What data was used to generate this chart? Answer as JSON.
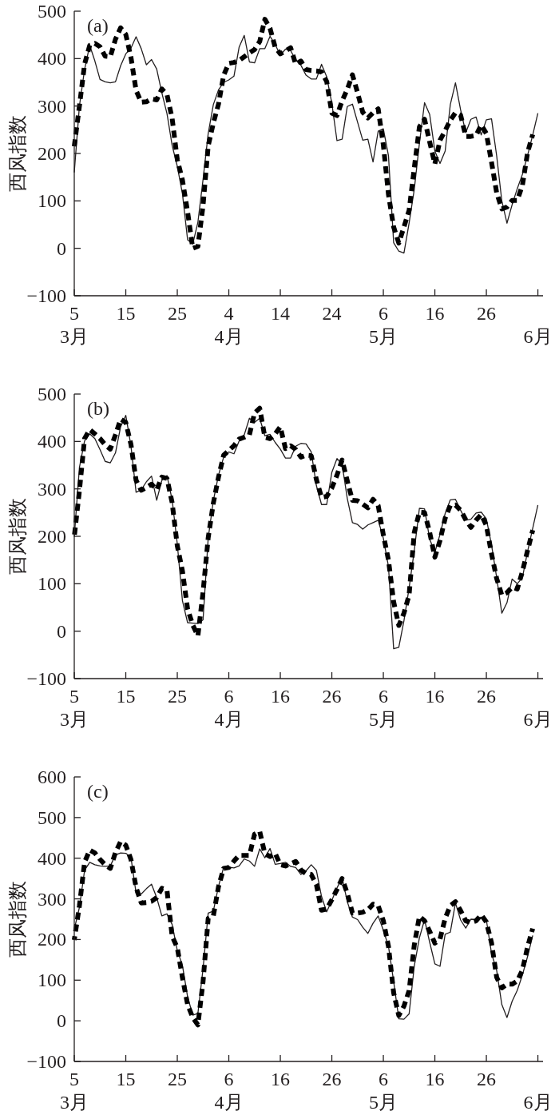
{
  "chart_data": [
    {
      "type": "line",
      "title": "(a)",
      "ylabel": "西风指数",
      "ylim": [
        -100,
        500
      ],
      "yticks": [
        -100,
        0,
        100,
        200,
        300,
        400,
        500
      ],
      "categories": [
        "5\n3月",
        null,
        null,
        null,
        null,
        null,
        null,
        null,
        null,
        null,
        "15",
        null,
        null,
        null,
        null,
        null,
        null,
        null,
        null,
        null,
        "25",
        null,
        null,
        null,
        null,
        null,
        null,
        null,
        null,
        null,
        "4\n4月",
        null,
        null,
        null,
        null,
        null,
        null,
        null,
        null,
        null,
        "14",
        null,
        null,
        null,
        null,
        null,
        null,
        null,
        null,
        null,
        "24",
        null,
        null,
        null,
        null,
        null,
        null,
        null,
        null,
        null,
        "6\n5月",
        null,
        null,
        null,
        null,
        null,
        null,
        null,
        null,
        null,
        "16",
        null,
        null,
        null,
        null,
        null,
        null,
        null,
        null,
        null,
        "26",
        null,
        null,
        null,
        null,
        null,
        null,
        null,
        null,
        null,
        "\n6月"
      ],
      "series": [
        {
          "color": "#231f20",
          "line_style": "solid",
          "values": [
            160,
            300,
            377,
            428,
            395,
            356,
            351,
            349,
            351,
            385,
            410,
            422,
            446,
            421,
            387,
            398,
            378,
            328,
            284,
            217,
            173,
            115,
            18,
            9,
            55,
            145,
            242,
            303,
            334,
            350,
            355,
            363,
            424,
            449,
            393,
            391,
            421,
            421,
            447,
            430,
            407,
            420,
            417,
            397,
            386,
            365,
            357,
            357,
            388,
            362,
            306,
            227,
            230,
            299,
            304,
            266,
            228,
            230,
            182,
            247,
            252,
            195,
            12,
            -6,
            -10,
            53,
            124,
            221,
            307,
            282,
            205,
            179,
            205,
            303,
            349,
            292,
            244,
            272,
            277,
            239,
            271,
            273,
            195,
            100,
            53,
            92,
            126,
            156,
            196,
            239,
            285
          ]
        },
        {
          "color": "#000000",
          "line_style": "dashed",
          "values": [
            215,
            300,
            388,
            428,
            432,
            425,
            405,
            404,
            441,
            465,
            451,
            403,
            333,
            308,
            309,
            315,
            313,
            336,
            324,
            274,
            187,
            144,
            77,
            0,
            4,
            90,
            216,
            264,
            304,
            365,
            390,
            392,
            396,
            404,
            412,
            419,
            436,
            483,
            464,
            424,
            410,
            416,
            423,
            388,
            395,
            377,
            375,
            374,
            372,
            352,
            285,
            280,
            311,
            335,
            366,
            328,
            287,
            275,
            286,
            294,
            218,
            113,
            45,
            11,
            45,
            80,
            169,
            256,
            272,
            224,
            178,
            228,
            248,
            270,
            286,
            281,
            236,
            236,
            238,
            260,
            242,
            182,
            117,
            83,
            87,
            101,
            101,
            133,
            202,
            240,
            null
          ]
        }
      ]
    },
    {
      "type": "line",
      "title": "(b)",
      "ylabel": "西风指数",
      "ylim": [
        -100,
        500
      ],
      "yticks": [
        -100,
        0,
        100,
        200,
        300,
        400,
        500
      ],
      "categories": [
        "5\n3月",
        null,
        null,
        null,
        null,
        null,
        null,
        null,
        null,
        null,
        "15",
        null,
        null,
        null,
        null,
        null,
        null,
        null,
        null,
        null,
        "25",
        null,
        null,
        null,
        null,
        null,
        null,
        null,
        null,
        null,
        "6\n4月",
        null,
        null,
        null,
        null,
        null,
        null,
        null,
        null,
        null,
        "16",
        null,
        null,
        null,
        null,
        null,
        null,
        null,
        null,
        null,
        "26",
        null,
        null,
        null,
        null,
        null,
        null,
        null,
        null,
        null,
        "6\n5月",
        null,
        null,
        null,
        null,
        null,
        null,
        null,
        null,
        null,
        "16",
        null,
        null,
        null,
        null,
        null,
        null,
        null,
        null,
        null,
        "26",
        null,
        null,
        null,
        null,
        null,
        null,
        null,
        null,
        null,
        "\n6月"
      ],
      "series": [
        {
          "color": "#231f20",
          "line_style": "solid",
          "values": [
            199,
            345,
            401,
            416,
            406,
            383,
            358,
            355,
            376,
            431,
            455,
            391,
            293,
            298,
            315,
            327,
            276,
            318,
            328,
            277,
            184,
            64,
            18,
            17,
            16,
            24,
            196,
            275,
            329,
            367,
            378,
            374,
            401,
            414,
            449,
            440,
            449,
            412,
            415,
            398,
            384,
            365,
            365,
            390,
            396,
            395,
            378,
            307,
            267,
            267,
            335,
            364,
            352,
            280,
            229,
            225,
            215,
            224,
            229,
            234,
            196,
            136,
            -37,
            -34,
            22,
            91,
            170,
            259,
            258,
            194,
            166,
            204,
            248,
            277,
            278,
            255,
            234,
            236,
            249,
            251,
            237,
            182,
            113,
            38,
            60,
            110,
            100,
            113,
            168,
            217,
            266
          ]
        },
        {
          "color": "#000000",
          "line_style": "dashed",
          "values": [
            199,
            296,
            406,
            425,
            416,
            406,
            393,
            384,
            414,
            447,
            440,
            394,
            318,
            297,
            303,
            310,
            298,
            325,
            322,
            271,
            180,
            127,
            47,
            13,
            -10,
            82,
            197,
            270,
            325,
            371,
            381,
            391,
            405,
            409,
            414,
            460,
            470,
            409,
            406,
            416,
            431,
            385,
            391,
            383,
            367,
            371,
            370,
            320,
            282,
            284,
            302,
            329,
            361,
            317,
            276,
            275,
            268,
            260,
            278,
            265,
            203,
            150,
            62,
            12,
            38,
            76,
            208,
            251,
            250,
            208,
            156,
            191,
            238,
            265,
            266,
            255,
            235,
            219,
            234,
            246,
            223,
            163,
            111,
            76,
            81,
            93,
            89,
            126,
            170,
            213,
            null
          ]
        }
      ]
    },
    {
      "type": "line",
      "title": "(c)",
      "ylabel": "西风指数",
      "ylim": [
        -100,
        600
      ],
      "yticks": [
        -100,
        0,
        100,
        200,
        300,
        400,
        500,
        600
      ],
      "categories": [
        "5\n3月",
        null,
        null,
        null,
        null,
        null,
        null,
        null,
        null,
        null,
        "15",
        null,
        null,
        null,
        null,
        null,
        null,
        null,
        null,
        null,
        "25",
        null,
        null,
        null,
        null,
        null,
        null,
        null,
        null,
        null,
        "6\n4月",
        null,
        null,
        null,
        null,
        null,
        null,
        null,
        null,
        null,
        "16",
        null,
        null,
        null,
        null,
        null,
        null,
        null,
        null,
        null,
        "26",
        null,
        null,
        null,
        null,
        null,
        null,
        null,
        null,
        null,
        "6\n5月",
        null,
        null,
        null,
        null,
        null,
        null,
        null,
        null,
        null,
        "16",
        null,
        null,
        null,
        null,
        null,
        null,
        null,
        null,
        null,
        "26",
        null,
        null,
        null,
        null,
        null,
        null,
        null,
        null,
        null,
        "\n6月"
      ],
      "series": [
        {
          "color": "#231f20",
          "line_style": "solid",
          "values": [
            225,
            279,
            370,
            390,
            384,
            381,
            380,
            381,
            408,
            413,
            412,
            402,
            314,
            312,
            325,
            336,
            303,
            258,
            263,
            237,
            173,
            136,
            59,
            14,
            18,
            128,
            265,
            270,
            331,
            378,
            378,
            376,
            381,
            398,
            393,
            380,
            423,
            401,
            424,
            385,
            387,
            390,
            380,
            377,
            360,
            369,
            384,
            370,
            306,
            268,
            296,
            327,
            352,
            293,
            255,
            249,
            230,
            215,
            240,
            258,
            223,
            183,
            97,
            5,
            4,
            17,
            134,
            204,
            249,
            193,
            140,
            134,
            213,
            218,
            290,
            248,
            228,
            250,
            249,
            255,
            248,
            166,
            124,
            40,
            8,
            48,
            75,
            113,
            158,
            210,
            null
          ]
        },
        {
          "color": "#000000",
          "line_style": "dashed",
          "values": [
            199,
            283,
            390,
            420,
            413,
            397,
            384,
            375,
            414,
            441,
            432,
            397,
            328,
            290,
            291,
            294,
            303,
            326,
            321,
            208,
            180,
            106,
            40,
            8,
            -10,
            96,
            252,
            258,
            330,
            375,
            377,
            393,
            407,
            407,
            407,
            459,
            466,
            411,
            404,
            412,
            384,
            381,
            386,
            392,
            371,
            362,
            360,
            335,
            272,
            275,
            298,
            323,
            350,
            314,
            265,
            265,
            267,
            273,
            287,
            283,
            246,
            183,
            69,
            13,
            36,
            74,
            186,
            257,
            246,
            220,
            191,
            201,
            252,
            283,
            293,
            271,
            246,
            242,
            246,
            261,
            243,
            192,
            107,
            81,
            90,
            90,
            98,
            125,
            182,
            227,
            null
          ]
        }
      ]
    }
  ]
}
